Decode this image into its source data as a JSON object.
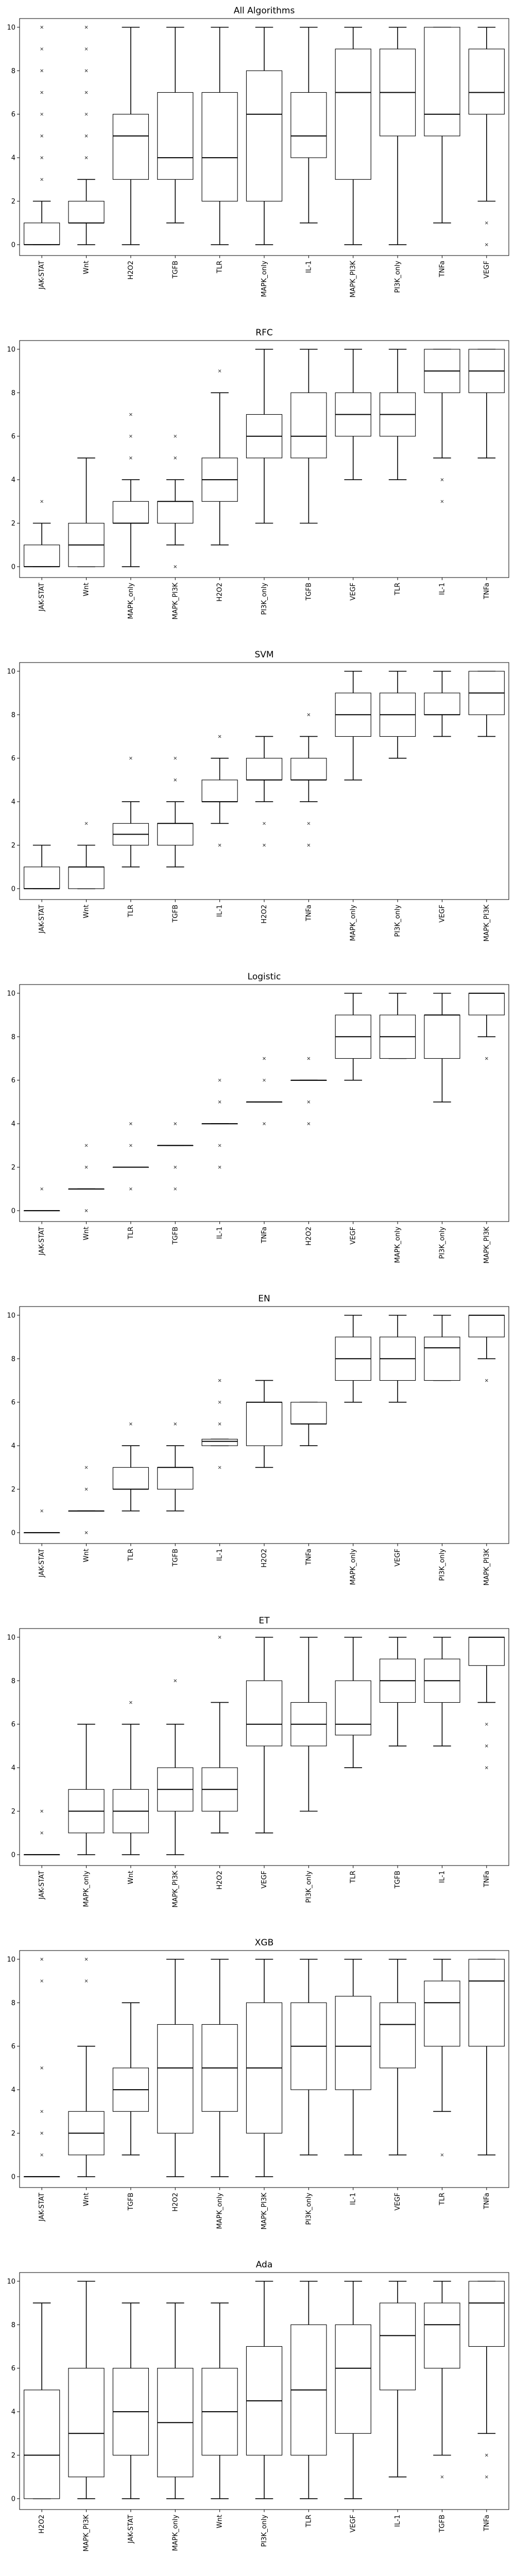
{
  "chart_data": [
    {
      "type": "boxplot",
      "title": "All Algorithms",
      "ylim": [
        -0.5,
        10.4
      ],
      "yticks": [
        0,
        2,
        4,
        6,
        8,
        10
      ],
      "categories": [
        "JAK-STAT",
        "Wnt",
        "H2O2",
        "TGFB",
        "TLR",
        "MAPK_only",
        "IL-1",
        "MAPK_PI3K",
        "PI3K_only",
        "TNFa",
        "VEGF"
      ],
      "boxes": [
        {
          "min": 0,
          "q1": 0,
          "median": 0,
          "q3": 1,
          "max": 2,
          "outliers": [
            3,
            4,
            5,
            6,
            7,
            8,
            9,
            10
          ]
        },
        {
          "min": 0,
          "q1": 1,
          "median": 1,
          "q3": 2,
          "max": 3,
          "outliers": [
            4,
            5,
            6,
            7,
            8,
            9,
            10
          ]
        },
        {
          "min": 0,
          "q1": 3,
          "median": 5,
          "q3": 6,
          "max": 10,
          "outliers": []
        },
        {
          "min": 1,
          "q1": 3,
          "median": 4,
          "q3": 7,
          "max": 10,
          "outliers": []
        },
        {
          "min": 0,
          "q1": 2,
          "median": 4,
          "q3": 7,
          "max": 10,
          "outliers": []
        },
        {
          "min": 0,
          "q1": 2,
          "median": 6,
          "q3": 8,
          "max": 10,
          "outliers": []
        },
        {
          "min": 1,
          "q1": 4,
          "median": 5,
          "q3": 7,
          "max": 10,
          "outliers": []
        },
        {
          "min": 0,
          "q1": 3,
          "median": 7,
          "q3": 9,
          "max": 10,
          "outliers": []
        },
        {
          "min": 0,
          "q1": 5,
          "median": 7,
          "q3": 9,
          "max": 10,
          "outliers": []
        },
        {
          "min": 1,
          "q1": 5,
          "median": 6,
          "q3": 10,
          "max": 10,
          "outliers": []
        },
        {
          "min": 2,
          "q1": 6,
          "median": 7,
          "q3": 9,
          "max": 10,
          "outliers": [
            0,
            1
          ]
        }
      ]
    },
    {
      "type": "boxplot",
      "title": "RFC",
      "ylim": [
        -0.5,
        10.4
      ],
      "yticks": [
        0,
        2,
        4,
        6,
        8,
        10
      ],
      "categories": [
        "JAK-STAT",
        "Wnt",
        "MAPK_only",
        "MAPK_PI3K",
        "H2O2",
        "PI3K_only",
        "TGFB",
        "VEGF",
        "TLR",
        "IL-1",
        "TNFa"
      ],
      "boxes": [
        {
          "min": 0,
          "q1": 0,
          "median": 0,
          "q3": 1,
          "max": 2,
          "outliers": [
            3
          ]
        },
        {
          "min": 0,
          "q1": 0,
          "median": 1,
          "q3": 2,
          "max": 5,
          "outliers": []
        },
        {
          "min": 0,
          "q1": 2,
          "median": 2,
          "q3": 3,
          "max": 4,
          "outliers": [
            5,
            6,
            7
          ]
        },
        {
          "min": 1,
          "q1": 2,
          "median": 3,
          "q3": 3,
          "max": 4,
          "outliers": [
            0,
            5,
            6
          ]
        },
        {
          "min": 1,
          "q1": 3,
          "median": 4,
          "q3": 5,
          "max": 8,
          "outliers": [
            9
          ]
        },
        {
          "min": 2,
          "q1": 5,
          "median": 6,
          "q3": 7,
          "max": 10,
          "outliers": []
        },
        {
          "min": 2,
          "q1": 5,
          "median": 6,
          "q3": 8,
          "max": 10,
          "outliers": []
        },
        {
          "min": 4,
          "q1": 6,
          "median": 7,
          "q3": 8,
          "max": 10,
          "outliers": []
        },
        {
          "min": 4,
          "q1": 6,
          "median": 7,
          "q3": 8,
          "max": 10,
          "outliers": []
        },
        {
          "min": 5,
          "q1": 8,
          "median": 9,
          "q3": 10,
          "max": 10,
          "outliers": [
            3,
            4
          ]
        },
        {
          "min": 5,
          "q1": 8,
          "median": 9,
          "q3": 10,
          "max": 10,
          "outliers": []
        }
      ]
    },
    {
      "type": "boxplot",
      "title": "SVM",
      "ylim": [
        -0.5,
        10.4
      ],
      "yticks": [
        0,
        2,
        4,
        6,
        8,
        10
      ],
      "categories": [
        "JAK-STAT",
        "Wnt",
        "TLR",
        "TGFB",
        "IL-1",
        "H2O2",
        "TNFa",
        "MAPK_only",
        "PI3K_only",
        "VEGF",
        "MAPK_PI3K"
      ],
      "boxes": [
        {
          "min": 0,
          "q1": 0,
          "median": 0,
          "q3": 1,
          "max": 2,
          "outliers": []
        },
        {
          "min": 0,
          "q1": 0,
          "median": 1,
          "q3": 1,
          "max": 2,
          "outliers": [
            3
          ]
        },
        {
          "min": 1,
          "q1": 2,
          "median": 2.5,
          "q3": 3,
          "max": 4,
          "outliers": [
            6
          ]
        },
        {
          "min": 1,
          "q1": 2,
          "median": 3,
          "q3": 3,
          "max": 4,
          "outliers": [
            5,
            6
          ]
        },
        {
          "min": 3,
          "q1": 4,
          "median": 4,
          "q3": 5,
          "max": 6,
          "outliers": [
            2,
            7
          ]
        },
        {
          "min": 4,
          "q1": 5,
          "median": 5,
          "q3": 6,
          "max": 7,
          "outliers": [
            2,
            3
          ]
        },
        {
          "min": 4,
          "q1": 5,
          "median": 5,
          "q3": 6,
          "max": 7,
          "outliers": [
            2,
            3,
            8
          ]
        },
        {
          "min": 5,
          "q1": 7,
          "median": 8,
          "q3": 9,
          "max": 10,
          "outliers": []
        },
        {
          "min": 6,
          "q1": 7,
          "median": 8,
          "q3": 9,
          "max": 10,
          "outliers": []
        },
        {
          "min": 7,
          "q1": 8,
          "median": 8,
          "q3": 9,
          "max": 10,
          "outliers": []
        },
        {
          "min": 7,
          "q1": 8,
          "median": 9,
          "q3": 10,
          "max": 10,
          "outliers": []
        }
      ]
    },
    {
      "type": "boxplot",
      "title": "Logistic",
      "ylim": [
        -0.5,
        10.4
      ],
      "yticks": [
        0,
        2,
        4,
        6,
        8,
        10
      ],
      "categories": [
        "JAK-STAT",
        "Wnt",
        "TLR",
        "TGFB",
        "IL-1",
        "TNFa",
        "H2O2",
        "VEGF",
        "MAPK_only",
        "PI3K_only",
        "MAPK_PI3K"
      ],
      "boxes": [
        {
          "min": 0,
          "q1": 0,
          "median": 0,
          "q3": 0,
          "max": 0,
          "outliers": [
            1
          ]
        },
        {
          "min": 1,
          "q1": 1,
          "median": 1,
          "q3": 1,
          "max": 1,
          "outliers": [
            0,
            2,
            3
          ]
        },
        {
          "min": 2,
          "q1": 2,
          "median": 2,
          "q3": 2,
          "max": 2,
          "outliers": [
            1,
            3,
            4
          ]
        },
        {
          "min": 3,
          "q1": 3,
          "median": 3,
          "q3": 3,
          "max": 3,
          "outliers": [
            1,
            2,
            4
          ]
        },
        {
          "min": 4,
          "q1": 4,
          "median": 4,
          "q3": 4,
          "max": 4,
          "outliers": [
            2,
            3,
            5,
            6
          ]
        },
        {
          "min": 5,
          "q1": 5,
          "median": 5,
          "q3": 5,
          "max": 5,
          "outliers": [
            4,
            6,
            7
          ]
        },
        {
          "min": 6,
          "q1": 6,
          "median": 6,
          "q3": 6,
          "max": 6,
          "outliers": [
            4,
            5,
            7
          ]
        },
        {
          "min": 6,
          "q1": 7,
          "median": 8,
          "q3": 9,
          "max": 10,
          "outliers": []
        },
        {
          "min": 7,
          "q1": 7,
          "median": 8,
          "q3": 9,
          "max": 10,
          "outliers": []
        },
        {
          "min": 5,
          "q1": 7,
          "median": 9,
          "q3": 9,
          "max": 10,
          "outliers": []
        },
        {
          "min": 8,
          "q1": 9,
          "median": 10,
          "q3": 10,
          "max": 10,
          "outliers": [
            7
          ]
        }
      ]
    },
    {
      "type": "boxplot",
      "title": "EN",
      "ylim": [
        -0.5,
        10.4
      ],
      "yticks": [
        0,
        2,
        4,
        6,
        8,
        10
      ],
      "categories": [
        "JAK-STAT",
        "Wnt",
        "TLR",
        "TGFB",
        "IL-1",
        "H2O2",
        "TNFa",
        "MAPK_only",
        "VEGF",
        "PI3K_only",
        "MAPK_PI3K"
      ],
      "boxes": [
        {
          "min": 0,
          "q1": 0,
          "median": 0,
          "q3": 0,
          "max": 0,
          "outliers": [
            1
          ]
        },
        {
          "min": 1,
          "q1": 1,
          "median": 1,
          "q3": 1,
          "max": 1,
          "outliers": [
            0,
            2,
            3
          ]
        },
        {
          "min": 1,
          "q1": 2,
          "median": 2,
          "q3": 3,
          "max": 4,
          "outliers": [
            5
          ]
        },
        {
          "min": 1,
          "q1": 2,
          "median": 3,
          "q3": 3,
          "max": 4,
          "outliers": [
            5
          ]
        },
        {
          "min": 4,
          "q1": 4,
          "median": 4.2,
          "q3": 4.3,
          "max": 4.3,
          "outliers": [
            3,
            5,
            6,
            7
          ]
        },
        {
          "min": 3,
          "q1": 4,
          "median": 6,
          "q3": 6,
          "max": 7,
          "outliers": []
        },
        {
          "min": 4,
          "q1": 5,
          "median": 5,
          "q3": 6,
          "max": 6,
          "outliers": []
        },
        {
          "min": 6,
          "q1": 7,
          "median": 8,
          "q3": 9,
          "max": 10,
          "outliers": []
        },
        {
          "min": 6,
          "q1": 7,
          "median": 8,
          "q3": 9,
          "max": 10,
          "outliers": []
        },
        {
          "min": 7,
          "q1": 7,
          "median": 8.5,
          "q3": 9,
          "max": 10,
          "outliers": []
        },
        {
          "min": 8,
          "q1": 9,
          "median": 10,
          "q3": 10,
          "max": 10,
          "outliers": [
            7
          ]
        }
      ]
    },
    {
      "type": "boxplot",
      "title": "ET",
      "ylim": [
        -0.5,
        10.4
      ],
      "yticks": [
        0,
        2,
        4,
        6,
        8,
        10
      ],
      "categories": [
        "JAK-STAT",
        "MAPK_only",
        "Wnt",
        "MAPK_PI3K",
        "H2O2",
        "VEGF",
        "PI3K_only",
        "TLR",
        "TGFB",
        "IL-1",
        "TNFa"
      ],
      "boxes": [
        {
          "min": 0,
          "q1": 0,
          "median": 0,
          "q3": 0,
          "max": 0,
          "outliers": [
            1,
            2
          ]
        },
        {
          "min": 0,
          "q1": 1,
          "median": 2,
          "q3": 3,
          "max": 6,
          "outliers": []
        },
        {
          "min": 0,
          "q1": 1,
          "median": 2,
          "q3": 3,
          "max": 6,
          "outliers": [
            7
          ]
        },
        {
          "min": 0,
          "q1": 2,
          "median": 3,
          "q3": 4,
          "max": 6,
          "outliers": [
            8
          ]
        },
        {
          "min": 1,
          "q1": 2,
          "median": 3,
          "q3": 4,
          "max": 7,
          "outliers": [
            10
          ]
        },
        {
          "min": 1,
          "q1": 5,
          "median": 6,
          "q3": 8,
          "max": 10,
          "outliers": []
        },
        {
          "min": 2,
          "q1": 5,
          "median": 6,
          "q3": 7,
          "max": 10,
          "outliers": []
        },
        {
          "min": 4,
          "q1": 5.5,
          "median": 6,
          "q3": 8,
          "max": 10,
          "outliers": []
        },
        {
          "min": 5,
          "q1": 7,
          "median": 8,
          "q3": 9,
          "max": 10,
          "outliers": []
        },
        {
          "min": 5,
          "q1": 7,
          "median": 8,
          "q3": 9,
          "max": 10,
          "outliers": []
        },
        {
          "min": 7,
          "q1": 8.7,
          "median": 10,
          "q3": 10,
          "max": 10,
          "outliers": [
            4,
            5,
            6
          ]
        }
      ]
    },
    {
      "type": "boxplot",
      "title": "XGB",
      "ylim": [
        -0.5,
        10.4
      ],
      "yticks": [
        0,
        2,
        4,
        6,
        8,
        10
      ],
      "categories": [
        "JAK-STAT",
        "Wnt",
        "TGFB",
        "H2O2",
        "MAPK_only",
        "MAPK_PI3K",
        "PI3K_only",
        "IL-1",
        "VEGF",
        "TLR",
        "TNFa"
      ],
      "boxes": [
        {
          "min": 0,
          "q1": 0,
          "median": 0,
          "q3": 0,
          "max": 0,
          "outliers": [
            1,
            2,
            3,
            5,
            9,
            10
          ]
        },
        {
          "min": 0,
          "q1": 1,
          "median": 2,
          "q3": 3,
          "max": 6,
          "outliers": [
            9,
            10
          ]
        },
        {
          "min": 1,
          "q1": 3,
          "median": 4,
          "q3": 5,
          "max": 8,
          "outliers": []
        },
        {
          "min": 0,
          "q1": 2,
          "median": 5,
          "q3": 7,
          "max": 10,
          "outliers": []
        },
        {
          "min": 0,
          "q1": 3,
          "median": 5,
          "q3": 7,
          "max": 10,
          "outliers": []
        },
        {
          "min": 0,
          "q1": 2,
          "median": 5,
          "q3": 8,
          "max": 10,
          "outliers": []
        },
        {
          "min": 1,
          "q1": 4,
          "median": 6,
          "q3": 8,
          "max": 10,
          "outliers": []
        },
        {
          "min": 1,
          "q1": 4,
          "median": 6,
          "q3": 8.3,
          "max": 10,
          "outliers": []
        },
        {
          "min": 1,
          "q1": 5,
          "median": 7,
          "q3": 8,
          "max": 10,
          "outliers": []
        },
        {
          "min": 3,
          "q1": 6,
          "median": 8,
          "q3": 9,
          "max": 10,
          "outliers": [
            1
          ]
        },
        {
          "min": 1,
          "q1": 6,
          "median": 9,
          "q3": 10,
          "max": 10,
          "outliers": []
        }
      ]
    },
    {
      "type": "boxplot",
      "title": "Ada",
      "ylim": [
        -0.5,
        10.4
      ],
      "yticks": [
        0,
        2,
        4,
        6,
        8,
        10
      ],
      "categories": [
        "H2O2",
        "MAPK_PI3K",
        "JAK-STAT",
        "MAPK_only",
        "Wnt",
        "PI3K_only",
        "TLR",
        "VEGF",
        "IL-1",
        "TGFB",
        "TNFa"
      ],
      "boxes": [
        {
          "min": 0,
          "q1": 0,
          "median": 2,
          "q3": 5,
          "max": 9,
          "outliers": []
        },
        {
          "min": 0,
          "q1": 1,
          "median": 3,
          "q3": 6,
          "max": 10,
          "outliers": []
        },
        {
          "min": 0,
          "q1": 2,
          "median": 4,
          "q3": 6,
          "max": 9,
          "outliers": []
        },
        {
          "min": 0,
          "q1": 1,
          "median": 3.5,
          "q3": 6,
          "max": 9,
          "outliers": []
        },
        {
          "min": 0,
          "q1": 2,
          "median": 4,
          "q3": 6,
          "max": 9,
          "outliers": []
        },
        {
          "min": 0,
          "q1": 2,
          "median": 4.5,
          "q3": 7,
          "max": 10,
          "outliers": []
        },
        {
          "min": 0,
          "q1": 2,
          "median": 5,
          "q3": 8,
          "max": 10,
          "outliers": []
        },
        {
          "min": 0,
          "q1": 3,
          "median": 6,
          "q3": 8,
          "max": 10,
          "outliers": []
        },
        {
          "min": 1,
          "q1": 5,
          "median": 7.5,
          "q3": 9,
          "max": 10,
          "outliers": []
        },
        {
          "min": 2,
          "q1": 6,
          "median": 8,
          "q3": 9,
          "max": 10,
          "outliers": [
            1
          ]
        },
        {
          "min": 3,
          "q1": 7,
          "median": 9,
          "q3": 10,
          "max": 10,
          "outliers": [
            1,
            2
          ]
        }
      ]
    }
  ]
}
